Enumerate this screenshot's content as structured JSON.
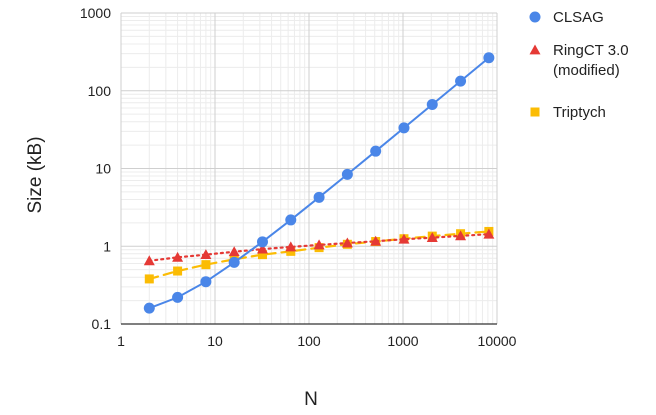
{
  "chart_data": {
    "type": "line",
    "xscale": "log",
    "yscale": "log",
    "xlim": [
      1,
      10000
    ],
    "ylim": [
      0.1,
      1000
    ],
    "grid": true,
    "legend_position": "right",
    "xlabel": "N",
    "ylabel": "Size (kB)",
    "x_ticks": [
      "1",
      "10",
      "100",
      "1000",
      "10000"
    ],
    "y_ticks": [
      "0.1",
      "1",
      "10",
      "100",
      "1000"
    ],
    "x": [
      2,
      4,
      8,
      16,
      32,
      64,
      128,
      256,
      512,
      1024,
      2048,
      4096,
      8192
    ],
    "series": [
      {
        "name": "CLSAG",
        "color": "#4a86e8",
        "marker": "circle",
        "line": "solid",
        "values": [
          0.16,
          0.22,
          0.35,
          0.62,
          1.14,
          2.18,
          4.26,
          8.4,
          16.7,
          33.3,
          66.6,
          133,
          266
        ]
      },
      {
        "name": "RingCT 3.0 (modified)",
        "legend_lines": [
          "RingCT 3.0",
          "(modified)"
        ],
        "color": "#e53935",
        "marker": "triangle",
        "line": "dotted",
        "values": [
          0.65,
          0.72,
          0.78,
          0.85,
          0.92,
          0.98,
          1.04,
          1.1,
          1.16,
          1.23,
          1.29,
          1.36,
          1.43
        ]
      },
      {
        "name": "Triptych",
        "color": "#fbbc04",
        "marker": "square",
        "line": "dashed",
        "values": [
          0.38,
          0.48,
          0.58,
          0.68,
          0.78,
          0.86,
          0.96,
          1.06,
          1.15,
          1.25,
          1.35,
          1.45,
          1.55
        ]
      }
    ]
  }
}
